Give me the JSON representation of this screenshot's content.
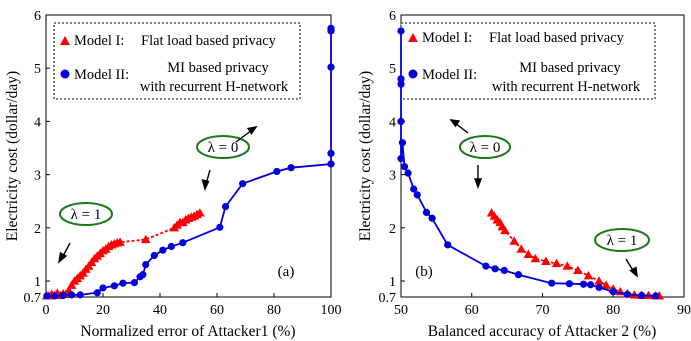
{
  "colors": {
    "model1": "#ff0000",
    "model2": "#0000dd",
    "ellipse": "#1a7a1a",
    "axis": "#000000"
  },
  "chart_data": [
    {
      "type": "line",
      "panel_label": "(a)",
      "xlabel": "Normalized error of Attacker1 (%)",
      "ylabel": "Electricity cost (dollar/day)",
      "xlim": [
        0,
        100
      ],
      "ylim": [
        0.7,
        6
      ],
      "xticks": [
        "0",
        "20",
        "40",
        "60",
        "80",
        "100"
      ],
      "yticks": [
        "0.7",
        "1",
        "2",
        "3",
        "4",
        "5",
        "6"
      ],
      "grid": false,
      "legend": {
        "placement": "top-left",
        "model1_label": "Model I:",
        "model1_desc": "Flat load based privacy",
        "model2_label": "Model II:",
        "model2_desc_line1": "MI based privacy",
        "model2_desc_line2": "with recurrent H-network"
      },
      "series": [
        {
          "name": "Model I: Flat load based privacy",
          "marker": "triangle",
          "x": [
            0.3,
            1,
            2,
            3,
            4,
            5,
            6,
            7,
            8,
            9,
            10,
            11,
            12,
            13,
            14,
            15,
            16,
            17,
            18,
            19,
            20,
            21,
            22,
            23,
            24,
            25,
            26,
            35,
            45,
            46,
            47,
            48,
            49,
            50,
            51,
            52,
            53,
            54
          ],
          "y": [
            0.72,
            0.72,
            0.75,
            0.73,
            0.77,
            0.73,
            0.76,
            0.75,
            0.82,
            0.92,
            1.0,
            1.05,
            1.1,
            1.15,
            1.22,
            1.28,
            1.35,
            1.42,
            1.47,
            1.52,
            1.57,
            1.6,
            1.65,
            1.68,
            1.7,
            1.72,
            1.73,
            1.78,
            2.0,
            2.05,
            2.1,
            2.1,
            2.15,
            2.18,
            2.2,
            2.22,
            2.25,
            2.28
          ]
        },
        {
          "name": "Model II: MI based privacy with recurrent H-network",
          "marker": "circle",
          "x": [
            0.3,
            3,
            6,
            9,
            12,
            18,
            20,
            24,
            27,
            31,
            33,
            34,
            35,
            38,
            41,
            44,
            48,
            61,
            63,
            69,
            81,
            86,
            100,
            100,
            100,
            100,
            100,
            100
          ],
          "y": [
            0.72,
            0.72,
            0.73,
            0.74,
            0.74,
            0.78,
            0.87,
            0.91,
            0.96,
            0.97,
            1.08,
            1.12,
            1.31,
            1.48,
            1.58,
            1.65,
            1.72,
            2.01,
            2.4,
            2.83,
            3.06,
            3.13,
            3.2,
            3.4,
            5.02,
            5.7,
            5.72,
            5.75
          ]
        }
      ],
      "annotations": [
        {
          "id": "lambda1",
          "text": "λ = 1"
        },
        {
          "id": "lambda0",
          "text": "λ = 0"
        }
      ]
    },
    {
      "type": "line",
      "panel_label": "(b)",
      "xlabel": "Balanced accuracy of Attacker 2 (%)",
      "ylabel": "Electricity cost (dollar/day)",
      "xlim": [
        50,
        90
      ],
      "ylim": [
        0.7,
        6
      ],
      "xticks": [
        "50",
        "60",
        "70",
        "80",
        "90"
      ],
      "yticks": [
        "0.7",
        "1",
        "2",
        "3",
        "4",
        "5",
        "6"
      ],
      "grid": false,
      "legend": {
        "placement": "top-right",
        "model1_label": "Model I:",
        "model1_desc": "Flat load based privacy",
        "model2_label": "Model II:",
        "model2_desc_line1": "MI based privacy",
        "model2_desc_line2": "with recurrent H-network"
      },
      "series": [
        {
          "name": "Model I: Flat load based privacy",
          "marker": "triangle",
          "x": [
            62.8,
            63.2,
            63.6,
            64.0,
            64.3,
            64.7,
            66.0,
            67.0,
            68.0,
            69.0,
            70.5,
            72.0,
            73.5,
            75.0,
            76.5,
            78.0,
            79.0,
            80.0,
            81.0,
            82.0,
            83.0,
            84.0,
            85.0,
            86.0,
            86.5
          ],
          "y": [
            2.28,
            2.22,
            2.15,
            2.1,
            2.02,
            1.95,
            1.75,
            1.6,
            1.5,
            1.42,
            1.37,
            1.33,
            1.28,
            1.2,
            1.1,
            1.0,
            0.92,
            0.85,
            0.8,
            0.76,
            0.74,
            0.73,
            0.73,
            0.72,
            0.72
          ]
        },
        {
          "name": "Model II: MI based privacy with recurrent H-network",
          "marker": "circle",
          "x": [
            50.0,
            50.0,
            50.0,
            50.0,
            50.0,
            50.2,
            50.5,
            51.0,
            51.8,
            52.3,
            53.6,
            54.4,
            56.6,
            62.0,
            63.3,
            64.6,
            66.6,
            71.3,
            73.8,
            75.8,
            76.8,
            78.0,
            80.0,
            82.0,
            84.0,
            86.0
          ],
          "y": [
            5.7,
            4.8,
            4.7,
            4.0,
            3.3,
            3.6,
            3.15,
            3.03,
            2.73,
            2.62,
            2.29,
            2.18,
            1.68,
            1.28,
            1.23,
            1.2,
            1.12,
            0.96,
            0.95,
            0.94,
            0.93,
            0.88,
            0.8,
            0.75,
            0.73,
            0.72
          ]
        }
      ],
      "annotations": [
        {
          "id": "lambda0",
          "text": "λ = 0"
        },
        {
          "id": "lambda1",
          "text": "λ = 1"
        }
      ]
    }
  ]
}
